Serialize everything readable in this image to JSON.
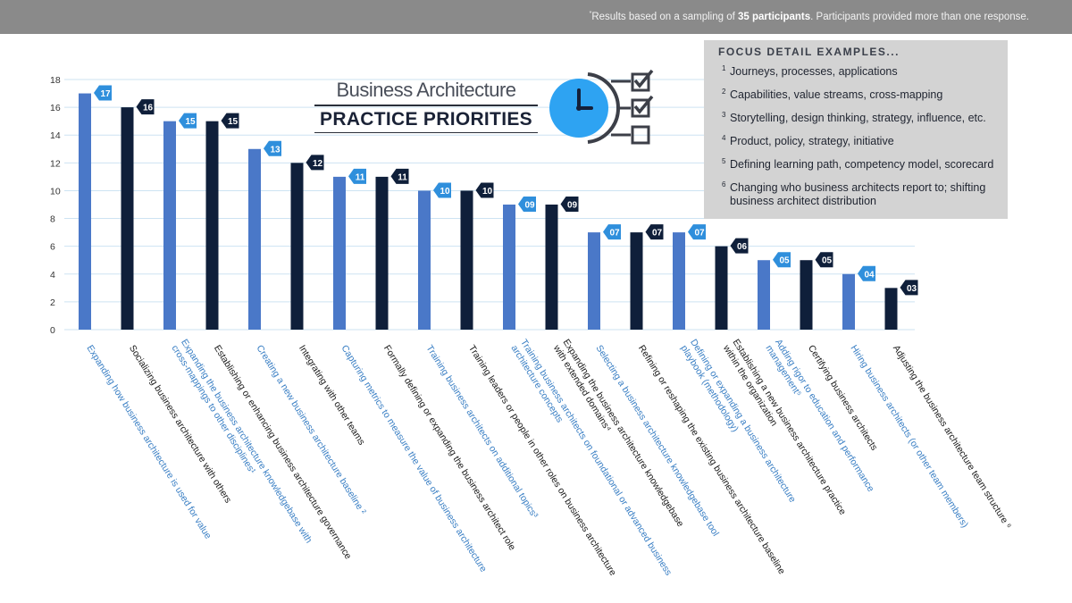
{
  "header": {
    "note_superscript": "*",
    "note_prefix": "Results based on a sampling of ",
    "note_bold": "35 participants",
    "note_suffix": ". Participants provided more than one response."
  },
  "title": {
    "line1": "Business Architecture",
    "line2": "PRACTICE PRIORITIES"
  },
  "focus": {
    "heading": "FOCUS DETAIL EXAMPLES...",
    "items": [
      {
        "num": "1",
        "text": "Journeys, processes, applications"
      },
      {
        "num": "2",
        "text": "Capabilities, value streams, cross-mapping"
      },
      {
        "num": "3",
        "text": "Storytelling, design thinking, strategy, influence, etc."
      },
      {
        "num": "4",
        "text": "Product, policy, strategy, initiative"
      },
      {
        "num": "5",
        "text": "Defining learning path, competency model, scorecard"
      },
      {
        "num": "6",
        "text": "Changing who business architects report to; shifting business architect distribution"
      }
    ]
  },
  "colors": {
    "blue": "#4a78c8",
    "navy": "#0f1f3a",
    "blue_label": "#2f8fdc",
    "blue_text": "#3a7fc4",
    "dark_text": "#1a1a1a",
    "grid": "#cde3f2",
    "clock": "#2ea3f2"
  },
  "chart_data": {
    "type": "bar",
    "ylim": [
      0,
      18
    ],
    "yticks": [
      0,
      2,
      4,
      6,
      8,
      10,
      12,
      14,
      16,
      18
    ],
    "grid": true,
    "categories": [
      "Expanding how business architecture is used for value",
      "Socializing business architecture with others",
      "Expanding the business architecture knowledgebase with cross-mappings to other disciplines¹",
      "Establishing or enhancing business architecture governance",
      "Creating a new business architecture baseline ²",
      "Integrating with other teams",
      "Capturing metrics to measure the value of business architecture",
      "Formally defining or expanding the business architect role",
      "Training business architects on additional topics³",
      "Training leaders or people in other roles on business architecture",
      "Training business architects on foundational or advanced business architecture concepts",
      "Expanding the business architecture knowledgebase with extended domains⁴",
      "Selecting a business architecture knowledgebase tool",
      "Refining or reshaping the existing business architecture baseline",
      "Defining or expanding a business architecture playbook (methodology)",
      "Establishing a new business architecture practice within the organization",
      "Adding rigor to education and performance management⁵",
      "Certifying business architects",
      "Hiring business architects (or other team members)",
      "Adjusting the business architecture team structure ⁶"
    ],
    "values": [
      17,
      16,
      15,
      15,
      13,
      12,
      11,
      11,
      10,
      10,
      9,
      9,
      7,
      7,
      7,
      6,
      5,
      5,
      4,
      3
    ],
    "value_labels": [
      "17",
      "16",
      "15",
      "15",
      "13",
      "12",
      "11",
      "11",
      "10",
      "10",
      "09",
      "09",
      "07",
      "07",
      "07",
      "06",
      "05",
      "05",
      "04",
      "03"
    ],
    "bar_colors": [
      "blue",
      "navy",
      "blue",
      "navy",
      "blue",
      "navy",
      "blue",
      "navy",
      "blue",
      "navy",
      "blue",
      "navy",
      "blue",
      "navy",
      "blue",
      "navy",
      "blue",
      "navy",
      "blue",
      "navy"
    ],
    "label_lines": [
      [
        "Expanding how business architecture is used for value"
      ],
      [
        "Socializing business architecture with others"
      ],
      [
        "Expanding the business architecture knowledgebase with",
        "cross-mappings to other disciplines¹"
      ],
      [
        "Establishing or enhancing business architecture governance"
      ],
      [
        "Creating a new business architecture baseline ²"
      ],
      [
        "Integrating with other teams"
      ],
      [
        "Capturing metrics to measure the value of business architecture"
      ],
      [
        "Formally defining or expanding the business architect role"
      ],
      [
        "Training business architects on additional topics³"
      ],
      [
        "Training leaders or people in other roles on business architecture"
      ],
      [
        "Training business architects on foundational or advanced business",
        "architecture concepts"
      ],
      [
        "Expanding the business architecture knowledgebase",
        "with extended domains⁴"
      ],
      [
        "Selecting a business architecture knowledgebase tool"
      ],
      [
        "Refining or reshaping the existing business architecture baseline"
      ],
      [
        "Defining or expanding a business architecture",
        "playbook (methodology)"
      ],
      [
        "Establishing a new business architecture practice",
        "within the organization"
      ],
      [
        "Adding rigor to education and performance",
        "management⁵"
      ],
      [
        "Certifying business architects"
      ],
      [
        "Hiring business architects (or other team members)"
      ],
      [
        "Adjusting the business architecture team structure ⁶"
      ]
    ]
  }
}
